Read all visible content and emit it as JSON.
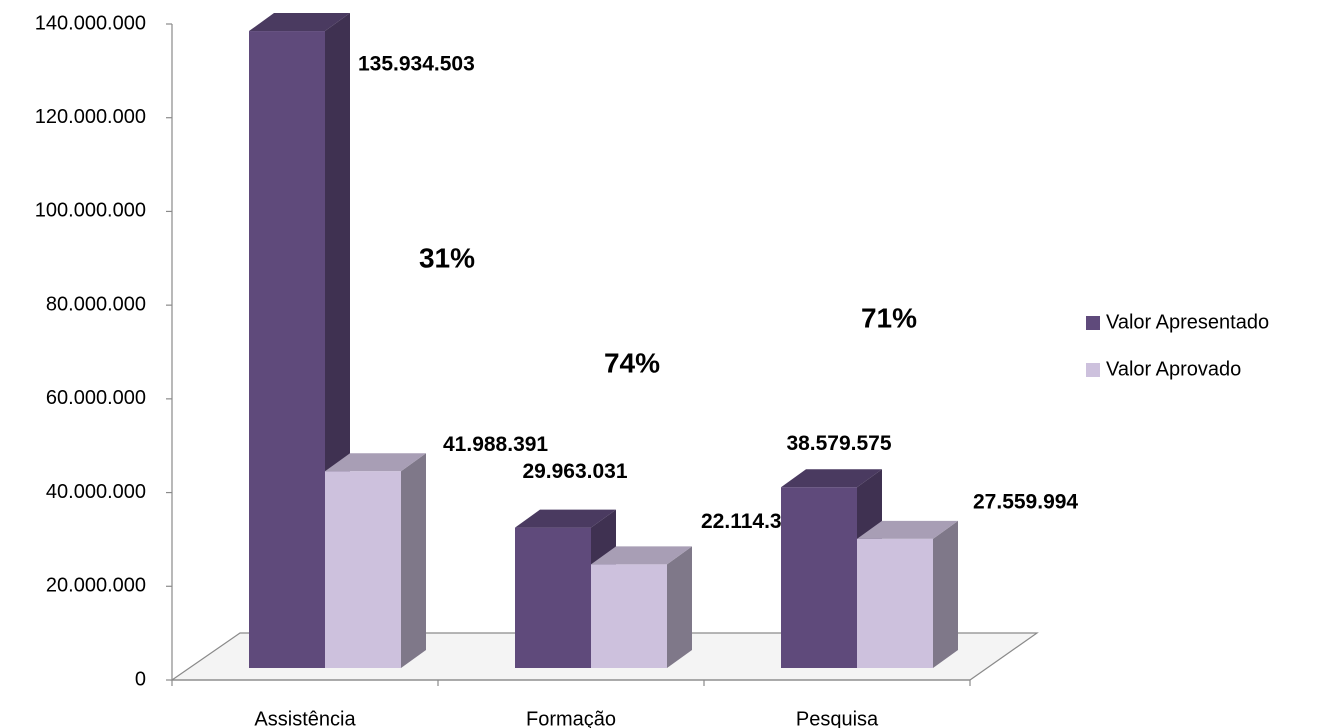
{
  "chart_data": {
    "type": "bar3d",
    "categories": [
      "Assistência",
      "Formação",
      "Pesquisa"
    ],
    "series": [
      {
        "name": "Valor Apresentado",
        "color": "#5f4a7b",
        "values": [
          135934503,
          29963031,
          38579575
        ],
        "value_labels": [
          "135.934.503",
          "29.963.031",
          "38.579.575"
        ]
      },
      {
        "name": "Valor Aprovado",
        "color": "#cdc1dd",
        "values": [
          41988391,
          22114322,
          27559994
        ],
        "value_labels": [
          "41.988.391",
          "22.114.322",
          "27.559.994"
        ]
      }
    ],
    "annotations": [
      "31%",
      "74%",
      "71%"
    ],
    "ylim": [
      0,
      140000000
    ],
    "yticks": [
      0,
      {
        "value": 20000000,
        "label": "20.000.000"
      },
      {
        "value": 40000000,
        "label": "40.000.000"
      },
      {
        "value": 60000000,
        "label": "60.000.000"
      },
      {
        "value": 80000000,
        "label": "80.000.000"
      },
      {
        "value": 100000000,
        "label": "100.000.000"
      },
      {
        "value": 120000000,
        "label": "120.000.000"
      },
      {
        "value": 140000000,
        "label": "140.000.000"
      }
    ],
    "legend": "right"
  }
}
